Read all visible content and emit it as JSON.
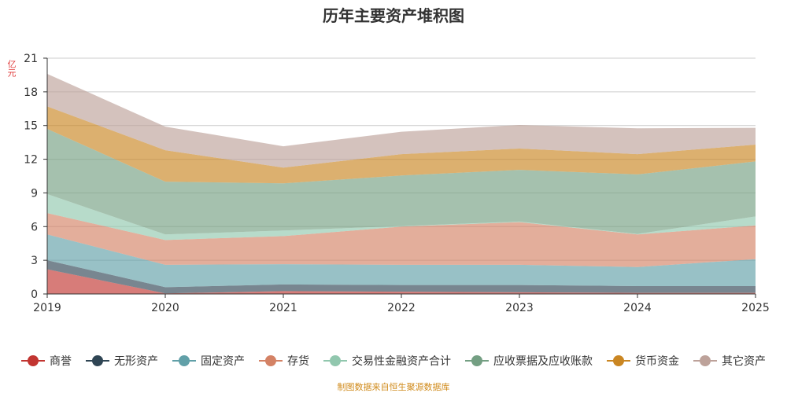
{
  "title": "历年主要资产堆积图",
  "unit_label": "亿元",
  "source_note": "制图数据来自恒生聚源数据库",
  "chart_data": {
    "type": "area",
    "stacked": true,
    "x": [
      "2019",
      "2020",
      "2021",
      "2022",
      "2023",
      "2024",
      "2025"
    ],
    "ylim": [
      0,
      21
    ],
    "yticks": [
      0,
      3,
      6,
      9,
      12,
      15,
      18,
      21
    ],
    "grid": true,
    "legend_position": "bottom",
    "series": [
      {
        "name": "商誉",
        "color": "#c23531",
        "values": [
          2.2,
          0.05,
          0.25,
          0.2,
          0.15,
          0.1,
          0.1
        ]
      },
      {
        "name": "无形资产",
        "color": "#2f4554",
        "values": [
          0.8,
          0.55,
          0.6,
          0.6,
          0.65,
          0.6,
          0.6
        ]
      },
      {
        "name": "固定资产",
        "color": "#61a0a8",
        "values": [
          2.3,
          2.0,
          1.8,
          1.8,
          1.8,
          1.7,
          2.4
        ]
      },
      {
        "name": "存货",
        "color": "#d48265",
        "values": [
          1.9,
          2.2,
          2.5,
          3.4,
          3.8,
          2.9,
          3.0
        ]
      },
      {
        "name": "交易性金融资产合计",
        "color": "#91c7ae",
        "values": [
          1.7,
          0.5,
          0.5,
          0.05,
          0.05,
          0.05,
          0.8
        ]
      },
      {
        "name": "应收票据及应收账款",
        "color": "#749f83",
        "values": [
          5.8,
          4.7,
          4.2,
          4.5,
          4.6,
          5.3,
          4.9
        ]
      },
      {
        "name": "货币资金",
        "color": "#ca8622",
        "values": [
          2.0,
          2.8,
          1.4,
          1.9,
          1.9,
          1.8,
          1.5
        ]
      },
      {
        "name": "其它资产",
        "color": "#bda29a",
        "values": [
          2.9,
          2.1,
          1.9,
          2.0,
          2.1,
          2.3,
          1.5
        ]
      }
    ]
  }
}
